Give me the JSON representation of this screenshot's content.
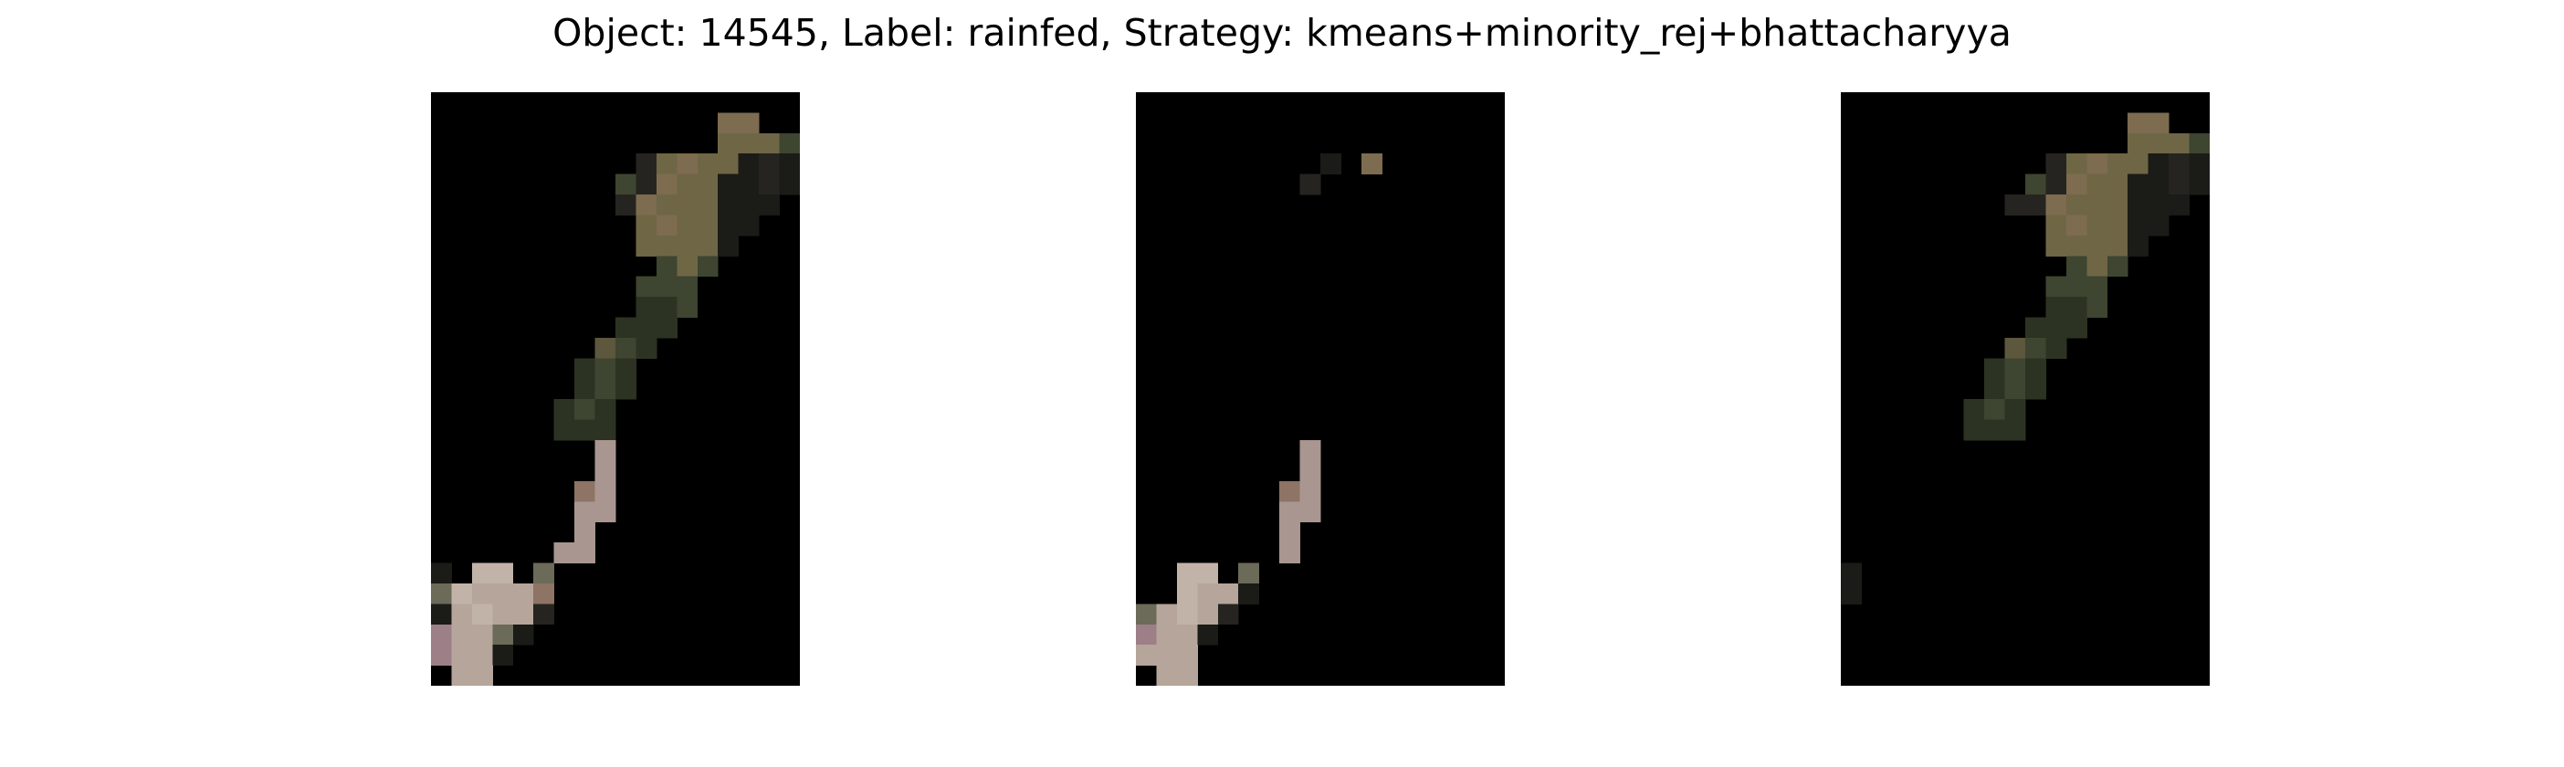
{
  "figure": {
    "title": "Object: 14545, Label: rainfed, Strategy: kmeans+minority_rej+bhattacharyya"
  },
  "colors": {
    "background": "#000000",
    "figure_background": "#ffffff",
    "vegetation_dark": "#2e3524",
    "vegetation_olive": "#5c573d",
    "soil_brown": "#7d6c4f",
    "pink_gray": "#a99690",
    "light_pink": "#b6a59a"
  },
  "panels": [
    {
      "id": "masked-image-1"
    },
    {
      "id": "masked-image-2"
    },
    {
      "id": "masked-image-3"
    }
  ]
}
